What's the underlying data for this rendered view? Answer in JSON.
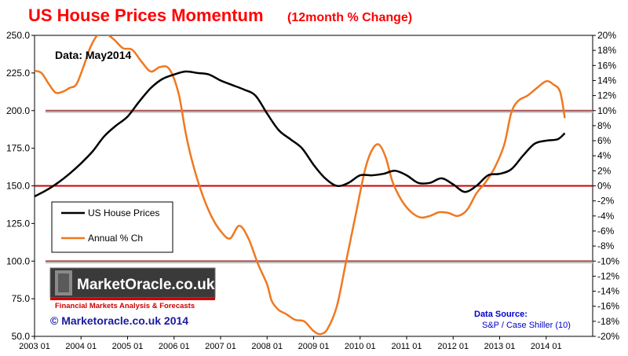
{
  "chart_data": {
    "type": "line",
    "title": "US House Prices Momentum",
    "subtitle": "(12month % Change)",
    "data_note": "Data:  May2014",
    "x_tick_labels": [
      "2003 01",
      "2004 01",
      "2005 01",
      "2006 01",
      "2007 01",
      "2008 01",
      "2009 01",
      "2010 01",
      "2011 01",
      "2012 01",
      "2013 01",
      "2014 01"
    ],
    "x_range": [
      2003.0,
      2015.0
    ],
    "y_left": {
      "range": [
        50,
        250
      ],
      "tick_labels": [
        "50.0",
        "75.0",
        "100.0",
        "125.0",
        "150.0",
        "175.0",
        "200.0",
        "225.0",
        "250.0"
      ],
      "ticks": [
        50,
        75,
        100,
        125,
        150,
        175,
        200,
        225,
        250
      ]
    },
    "y_right": {
      "range": [
        -20,
        20
      ],
      "tick_labels": [
        "-20%",
        "-18%",
        "-16%",
        "-14%",
        "-12%",
        "-10%",
        "-8%",
        "-6%",
        "-4%",
        "-2%",
        "0%",
        "2%",
        "4%",
        "6%",
        "8%",
        "10%",
        "12%",
        "14%",
        "16%",
        "18%",
        "20%"
      ],
      "ticks": [
        -20,
        -18,
        -16,
        -14,
        -12,
        -10,
        -8,
        -6,
        -4,
        -2,
        0,
        2,
        4,
        6,
        8,
        10,
        12,
        14,
        16,
        18,
        20
      ]
    },
    "reference_lines_right_axis": [
      10,
      0,
      -10
    ],
    "legend": {
      "position": "left-middle",
      "entries": [
        "US House Prices",
        "Annual % Ch"
      ]
    },
    "series": [
      {
        "name": "US House Prices",
        "axis": "left",
        "color": "#000000",
        "x": [
          2003.0,
          2003.25,
          2003.5,
          2003.75,
          2004.0,
          2004.25,
          2004.5,
          2004.75,
          2005.0,
          2005.25,
          2005.5,
          2005.75,
          2006.0,
          2006.25,
          2006.5,
          2006.75,
          2007.0,
          2007.25,
          2007.5,
          2007.75,
          2008.0,
          2008.25,
          2008.5,
          2008.75,
          2009.0,
          2009.25,
          2009.5,
          2009.75,
          2010.0,
          2010.25,
          2010.5,
          2010.75,
          2011.0,
          2011.25,
          2011.5,
          2011.75,
          2012.0,
          2012.25,
          2012.5,
          2012.75,
          2013.0,
          2013.25,
          2013.5,
          2013.75,
          2014.0,
          2014.25,
          2014.4
        ],
        "values": [
          143,
          147,
          152,
          158,
          165,
          173,
          183,
          190,
          196,
          206,
          215,
          221,
          224,
          226,
          225,
          224,
          220,
          217,
          214,
          210,
          198,
          187,
          181,
          175,
          164,
          155,
          150,
          152,
          157,
          157,
          158,
          160,
          157,
          152,
          152,
          155,
          151,
          146,
          150,
          157,
          158,
          161,
          170,
          178,
          180,
          181,
          185
        ]
      },
      {
        "name": "Annual % Ch",
        "axis": "right",
        "color": "#f07820",
        "x": [
          2003.0,
          2003.15,
          2003.3,
          2003.45,
          2003.6,
          2003.75,
          2003.9,
          2004.05,
          2004.2,
          2004.35,
          2004.5,
          2004.7,
          2004.9,
          2005.1,
          2005.3,
          2005.5,
          2005.7,
          2005.9,
          2006.1,
          2006.25,
          2006.4,
          2006.6,
          2006.8,
          2007.0,
          2007.2,
          2007.4,
          2007.6,
          2007.8,
          2008.0,
          2008.1,
          2008.25,
          2008.4,
          2008.6,
          2008.8,
          2009.0,
          2009.15,
          2009.3,
          2009.5,
          2009.7,
          2009.9,
          2010.1,
          2010.25,
          2010.4,
          2010.55,
          2010.7,
          2010.9,
          2011.1,
          2011.3,
          2011.5,
          2011.7,
          2011.9,
          2012.1,
          2012.3,
          2012.5,
          2012.7,
          2012.9,
          2013.1,
          2013.25,
          2013.4,
          2013.6,
          2013.8,
          2014.0,
          2014.15,
          2014.3,
          2014.4
        ],
        "values": [
          15.3,
          15.0,
          13.6,
          12.4,
          12.5,
          13.0,
          13.5,
          15.8,
          18.4,
          20.0,
          20.3,
          19.5,
          18.3,
          18.1,
          16.5,
          15.2,
          15.8,
          15.5,
          12.2,
          7.0,
          3.0,
          -1.0,
          -4.0,
          -6.0,
          -7.0,
          -5.3,
          -7.0,
          -10.3,
          -13.1,
          -15.3,
          -16.5,
          -17.0,
          -17.8,
          -18.0,
          -19.3,
          -19.7,
          -19.0,
          -16.0,
          -10.0,
          -4.0,
          2.0,
          4.7,
          5.5,
          3.8,
          0.5,
          -2.0,
          -3.5,
          -4.2,
          -4.0,
          -3.5,
          -3.6,
          -4.0,
          -3.2,
          -1.0,
          0.5,
          2.5,
          5.5,
          9.7,
          11.3,
          12.0,
          13.0,
          13.9,
          13.5,
          12.5,
          9.0
        ]
      }
    ]
  },
  "footer": {
    "logo_text": "MarketOracle.co.uk",
    "tagline": "Financial Markets Analysis & Forecasts",
    "copyright": "© Marketoracle.co.uk 2014",
    "source_label": "Data Source:",
    "source_text": "S&P / Case Shiller (10)"
  },
  "colors": {
    "title": "#ff0000",
    "price_line": "#000000",
    "momentum_line": "#f07820",
    "zero_line": "#cc0000",
    "band_line": "#aa5555",
    "source_text": "#0000cc",
    "copyright": "#1a1aa0"
  }
}
